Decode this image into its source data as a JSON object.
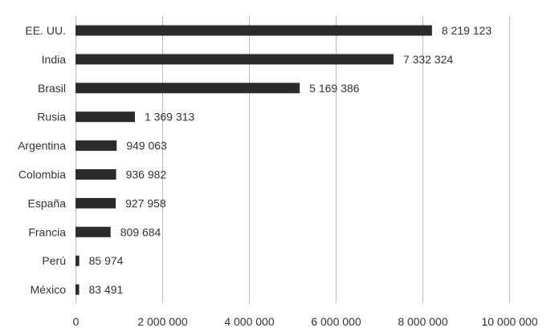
{
  "chart_data": {
    "type": "bar",
    "orientation": "horizontal",
    "categories": [
      "EE. UU.",
      "India",
      "Brasil",
      "Rusia",
      "Argentina",
      "Colombia",
      "España",
      "Francia",
      "Perú",
      "México"
    ],
    "values": [
      8219123,
      7332324,
      5169386,
      1369313,
      949063,
      936982,
      927958,
      809684,
      85974,
      83491
    ],
    "value_labels": [
      "8 219 123",
      "7 332 324",
      "5 169 386",
      "1 369 313",
      "949 063",
      "936 982",
      "927 958",
      "809 684",
      "85 974",
      "83 491"
    ],
    "xticks": [
      0,
      2000000,
      4000000,
      6000000,
      8000000,
      10000000
    ],
    "xtick_labels": [
      "0",
      "2 000 000",
      "4 000 000",
      "6 000 000",
      "8 000 000",
      "10 000 000"
    ],
    "xlim": [
      0,
      10000000
    ],
    "grid": "vertical",
    "legend": "none",
    "title": "",
    "xlabel": "",
    "ylabel": "",
    "colors": {
      "bar": "#2b2b2b",
      "grid": "#bdbdbd",
      "text": "#333333"
    }
  }
}
